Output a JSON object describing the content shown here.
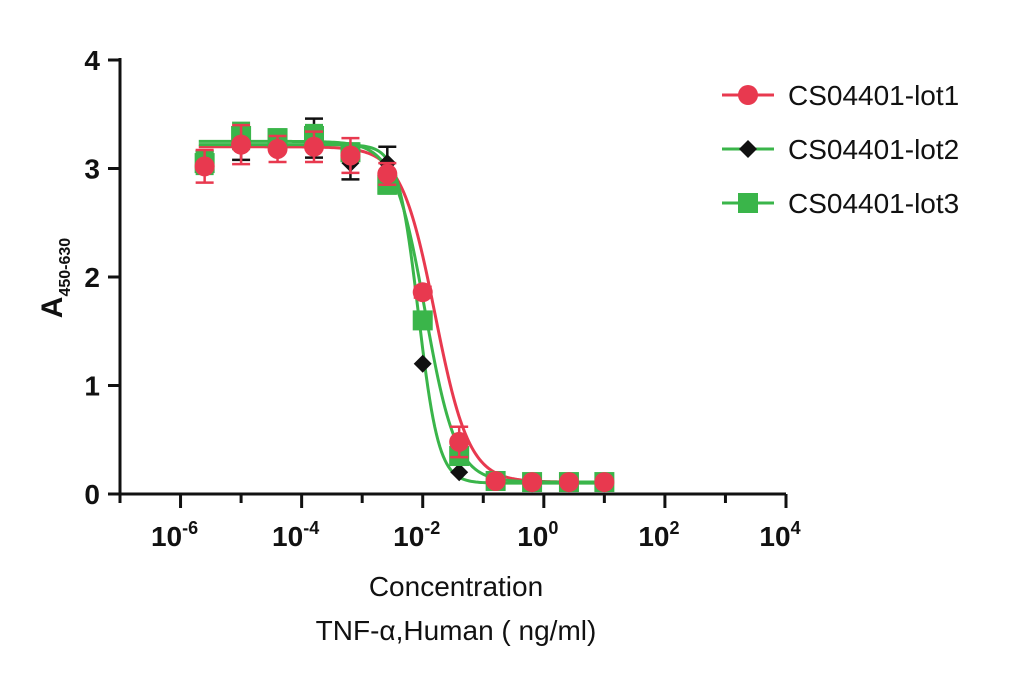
{
  "chart_data": {
    "type": "scatter",
    "xscale": "log",
    "xlim": [
      1e-07,
      10000
    ],
    "ylim": [
      0,
      4
    ],
    "x_tick_labels": [
      {
        "base": "10",
        "exp": "-6",
        "value": 1e-06
      },
      {
        "base": "10",
        "exp": "-4",
        "value": 0.0001
      },
      {
        "base": "10",
        "exp": "-2",
        "value": 0.01
      },
      {
        "base": "10",
        "exp": "0",
        "value": 1
      },
      {
        "base": "10",
        "exp": "2",
        "value": 100
      },
      {
        "base": "10",
        "exp": "4",
        "value": 10000
      }
    ],
    "y_ticks": [
      "0",
      "1",
      "2",
      "3",
      "4"
    ],
    "ylabel": {
      "main": "A",
      "sub": "450-630"
    },
    "xlabel": [
      "Concentration",
      "TNF-α,Human ( ng/ml)"
    ],
    "legend_position": "top-right",
    "grid": false,
    "series": [
      {
        "name": "CS04401-lot1",
        "color": "#e8394f",
        "marker": "circle",
        "x": [
          2.5e-06,
          1e-05,
          4e-05,
          0.00016,
          0.00064,
          0.0026,
          0.01,
          0.04,
          0.16,
          0.64,
          2.6,
          10
        ],
        "y": [
          3.02,
          3.22,
          3.18,
          3.2,
          3.12,
          2.95,
          1.86,
          0.48,
          0.12,
          0.11,
          0.11,
          0.11
        ],
        "err": [
          0.15,
          0.18,
          0.12,
          0.14,
          0.16,
          0.1,
          0.05,
          0.14,
          0.02,
          0.02,
          0.02,
          0.02
        ]
      },
      {
        "name": "CS04401-lot2",
        "color": "#111111",
        "line_color": "#3ab54a",
        "marker": "diamond",
        "x": [
          2.5e-06,
          1e-05,
          4e-05,
          0.00016,
          0.00064,
          0.0026,
          0.01,
          0.04,
          0.16,
          0.64,
          2.6,
          10
        ],
        "y": [
          3.08,
          3.2,
          3.25,
          3.28,
          3.05,
          3.05,
          1.2,
          0.2,
          0.12,
          0.11,
          0.11,
          0.11
        ],
        "err": [
          0.08,
          0.12,
          0.1,
          0.18,
          0.15,
          0.15,
          0.03,
          0.03,
          0.02,
          0.02,
          0.02,
          0.02
        ]
      },
      {
        "name": "CS04401-lot3",
        "color": "#3ab54a",
        "marker": "square",
        "x": [
          2.5e-06,
          1e-05,
          4e-05,
          0.00016,
          0.00064,
          0.0026,
          0.01,
          0.04,
          0.16,
          0.64,
          2.6,
          10
        ],
        "y": [
          3.05,
          3.3,
          3.28,
          3.3,
          3.15,
          2.85,
          1.6,
          0.35,
          0.12,
          0.11,
          0.11,
          0.11
        ],
        "err": [
          0.1,
          0.12,
          0.08,
          0.1,
          0.08,
          0.08,
          0.06,
          0.05,
          0.02,
          0.02,
          0.02,
          0.02
        ]
      }
    ],
    "fit_curves": [
      {
        "series": "CS04401-lot1",
        "color": "#e8394f",
        "top": 3.2,
        "bottom": 0.11,
        "ic50": 0.016,
        "hill": 1.55
      },
      {
        "series": "CS04401-lot2",
        "color": "#3ab54a",
        "top": 3.22,
        "bottom": 0.1,
        "ic50": 0.0085,
        "hill": 2.6
      },
      {
        "series": "CS04401-lot3",
        "color": "#3ab54a",
        "top": 3.25,
        "bottom": 0.11,
        "ic50": 0.011,
        "hill": 1.7
      }
    ]
  }
}
